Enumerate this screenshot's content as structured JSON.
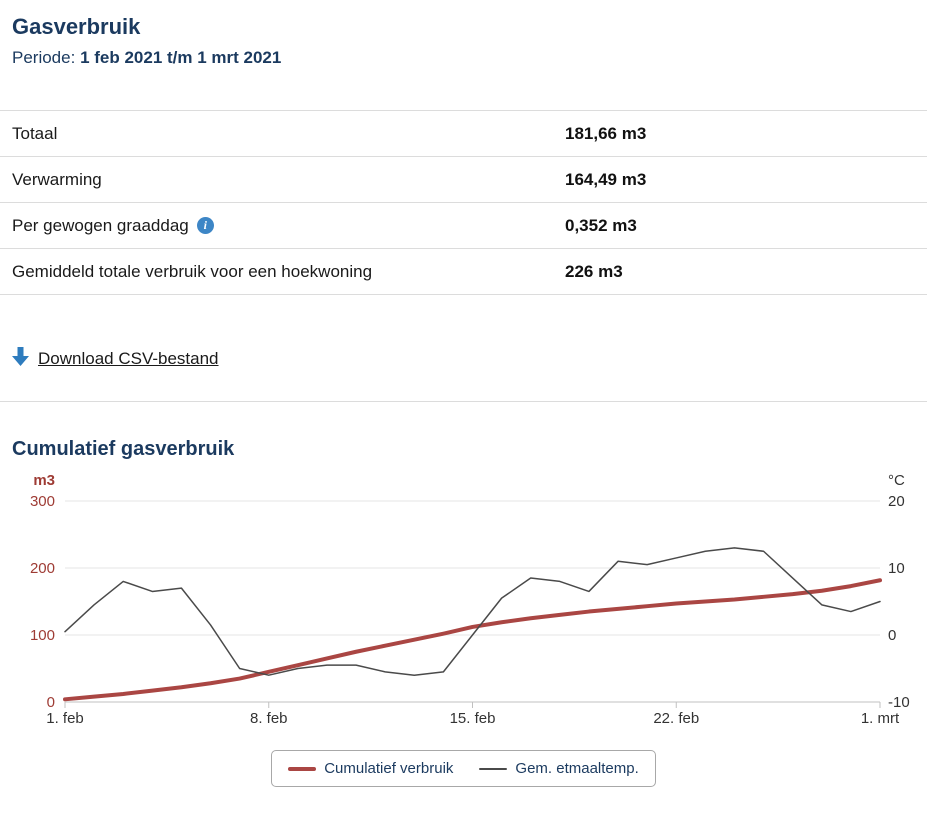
{
  "page": {
    "title": "Gasverbruik",
    "period_label": "Periode:",
    "period_value": "1 feb 2021 t/m 1 mrt 2021"
  },
  "stats_table": {
    "rows": [
      {
        "label": "Totaal",
        "value": "181,66 m3"
      },
      {
        "label": "Verwarming",
        "value": "164,49 m3"
      },
      {
        "label": "Per gewogen graaddag",
        "value": "0,352 m3",
        "has_info_icon": true
      },
      {
        "label": "Gemiddeld totale verbruik voor een hoekwoning",
        "value": "226 m3"
      }
    ]
  },
  "icons": {
    "info_glyph": "i",
    "download_icon": "down-arrow-icon",
    "download_icon_color": "#2e7cbe"
  },
  "download": {
    "label": "Download CSV-bestand"
  },
  "chart_section": {
    "title": "Cumulatief gasverbruik"
  },
  "chart_data": {
    "type": "line",
    "title": "Cumulatief gasverbruik",
    "x_unit": "day",
    "x_range": [
      "1 feb 2021",
      "1 mrt 2021"
    ],
    "x_tick_labels": [
      "1. feb",
      "8. feb",
      "15. feb",
      "22. feb",
      "1. mrt"
    ],
    "x_tick_indices": [
      0,
      7,
      14,
      21,
      28
    ],
    "grid": true,
    "legend_position": "bottom",
    "y_left": {
      "label": "m3",
      "ticks": [
        0,
        100,
        200,
        300
      ],
      "range": [
        0,
        300
      ],
      "color": "#9e3b34"
    },
    "y_right": {
      "label": "°C",
      "ticks": [
        -10,
        0,
        10,
        20
      ],
      "range": [
        -10,
        20
      ],
      "color": "#333333"
    },
    "series": [
      {
        "name": "Cumulatief verbruik",
        "axis": "left",
        "color": "#aa4643",
        "width": 4,
        "values": [
          4,
          8,
          12,
          17,
          22,
          28,
          35,
          45,
          55,
          65,
          75,
          84,
          93,
          102,
          112,
          119,
          125,
          130,
          135,
          139,
          143,
          147,
          150,
          153,
          157,
          161,
          166,
          173,
          181.7
        ]
      },
      {
        "name": "Gem. etmaaltemp.",
        "axis": "right",
        "color": "#4a4a4a",
        "width": 1.5,
        "values": [
          0.5,
          4.5,
          8,
          6.5,
          7,
          1.5,
          -5,
          -6,
          -5,
          -4.5,
          -4.5,
          -5.5,
          -6,
          -5.5,
          0,
          5.5,
          8.5,
          8,
          6.5,
          11,
          10.5,
          11.5,
          12.5,
          13,
          12.5,
          8.5,
          4.5,
          3.5,
          5
        ]
      }
    ]
  }
}
